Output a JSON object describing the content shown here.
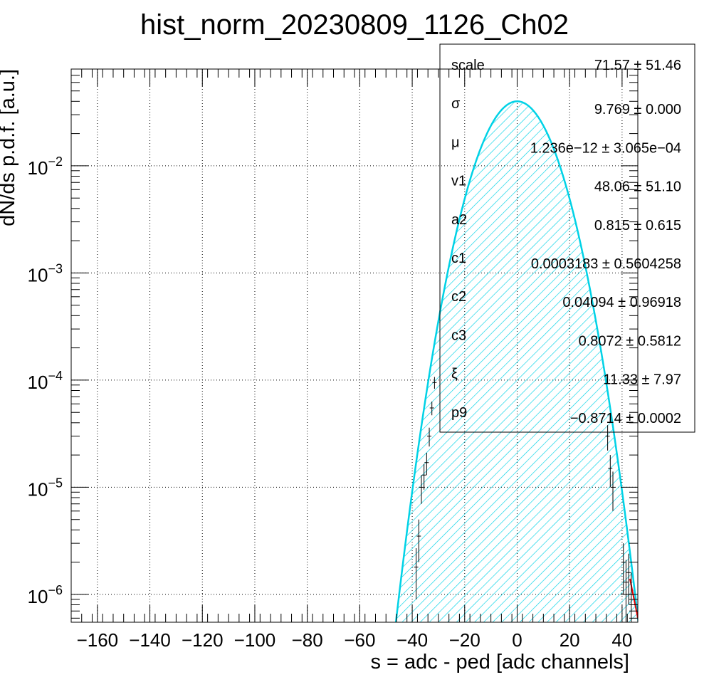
{
  "chart_data": {
    "type": "line",
    "title": "hist_norm_20230809_1126_Ch02",
    "xlabel": "s = adc - ped [adc channels]",
    "ylabel": "dN/ds p.d.f. [a.u.]",
    "xlim": [
      -170,
      46
    ],
    "ylim": [
      5.5e-07,
      0.08
    ],
    "yscale": "log",
    "grid": true,
    "x_ticks": [
      -160,
      -140,
      -120,
      -100,
      -80,
      -60,
      -40,
      -20,
      0,
      20,
      40
    ],
    "y_ticks": [
      {
        "value": 1e-06,
        "base": "10",
        "exp": "−6"
      },
      {
        "value": 1e-05,
        "base": "10",
        "exp": "−5"
      },
      {
        "value": 0.0001,
        "base": "10",
        "exp": "−4"
      },
      {
        "value": 0.001,
        "base": "10",
        "exp": "−3"
      },
      {
        "value": 0.01,
        "base": "10",
        "exp": "−2"
      }
    ],
    "fit": {
      "sigma": 9.769,
      "mu": 1.236e-12,
      "peak": 0.04
    },
    "histogram_points": [
      {
        "x": -38.5,
        "y": 1.8e-06,
        "err": 9e-07
      },
      {
        "x": -37.5,
        "y": 3.5e-06,
        "err": 1.5e-06
      },
      {
        "x": -36.5,
        "y": 1e-05,
        "err": 3e-06
      },
      {
        "x": -35.5,
        "y": 1.3e-05,
        "err": 3.5e-06
      },
      {
        "x": -34.5,
        "y": 1.7e-05,
        "err": 4e-06
      },
      {
        "x": -33.5,
        "y": 3e-05,
        "err": 6e-06
      },
      {
        "x": -32.5,
        "y": 5.5e-05,
        "err": 8e-06
      },
      {
        "x": -31.5,
        "y": 9.5e-05,
        "err": 1.2e-05
      },
      {
        "x": 34.5,
        "y": 3e-05,
        "err": 8e-06
      },
      {
        "x": 35.5,
        "y": 1.5e-05,
        "err": 5e-06
      },
      {
        "x": 36.5,
        "y": 1e-05,
        "err": 4e-06
      },
      {
        "x": 40.5,
        "y": 2e-06,
        "err": 1e-06
      },
      {
        "x": 41.5,
        "y": 1.3e-06,
        "err": 8e-07
      },
      {
        "x": 42.5,
        "y": 1.6e-06,
        "err": 8e-07
      },
      {
        "x": 43.5,
        "y": 1e-06,
        "err": 6e-07
      }
    ],
    "stats": [
      {
        "label": "scale",
        "value": "71.57 ± 51.46"
      },
      {
        "label": "σ",
        "value": "9.769 ± 0.000"
      },
      {
        "label": "μ",
        "value": "1.236e−12 ± 3.065e−04"
      },
      {
        "label": "v1",
        "value": "48.06 ± 51.10"
      },
      {
        "label": "a2",
        "value": "0.815 ± 0.615"
      },
      {
        "label": "c1",
        "value": "0.0003183 ± 0.5604258"
      },
      {
        "label": "c2",
        "value": "0.04094 ± 0.96918"
      },
      {
        "label": "c3",
        "value": "0.8072 ± 0.5812"
      },
      {
        "label": "ξ",
        "value": "11.33 ± 7.97"
      },
      {
        "label": "p9",
        "value": "−0.8714 ± 0.0002"
      }
    ],
    "colors": {
      "fit": "#00d2e6",
      "tail": "#e60000",
      "frame": "#000000"
    }
  }
}
